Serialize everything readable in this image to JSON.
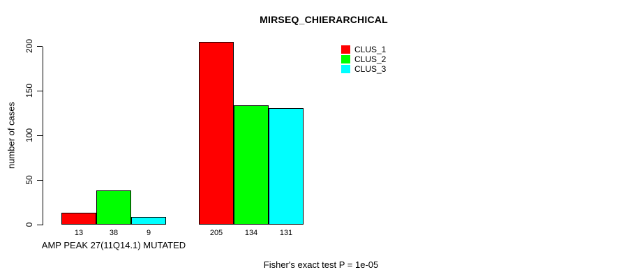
{
  "title": "MIRSEQ_CHIERARCHICAL",
  "footer": "Fisher's exact test P = 1e-05",
  "colors": {
    "clus1": "#FF0000",
    "clus2": "#00FF00",
    "clus3": "#00FFFF",
    "axis": "#000000",
    "background": "#FFFFFF"
  },
  "chart_data": {
    "type": "bar",
    "title": "MIRSEQ_CHIERARCHICAL",
    "ylabel": "number of cases",
    "xlabel": "",
    "categories": [
      "AMP PEAK 27(11Q14.1) MUTATED",
      ""
    ],
    "group_label": "AMP PEAK 27(11Q14.1) MUTATED",
    "series": [
      {
        "name": "CLUS_1",
        "color": "#FF0000",
        "values": [
          13,
          205
        ]
      },
      {
        "name": "CLUS_2",
        "color": "#00FF00",
        "values": [
          38,
          134
        ]
      },
      {
        "name": "CLUS_3",
        "color": "#00FFFF",
        "values": [
          9,
          131
        ]
      }
    ],
    "bar_value_labels": [
      [
        "13",
        "38",
        "9"
      ],
      [
        "205",
        "134",
        "131"
      ]
    ],
    "yticks": [
      0,
      50,
      100,
      150,
      200
    ],
    "ylim": [
      0,
      205
    ],
    "grid": false,
    "legend_position": "top-right",
    "legend_entries": [
      "CLUS_1",
      "CLUS_2",
      "CLUS_3"
    ],
    "annotation": "Fisher's exact test P = 1e-05"
  }
}
